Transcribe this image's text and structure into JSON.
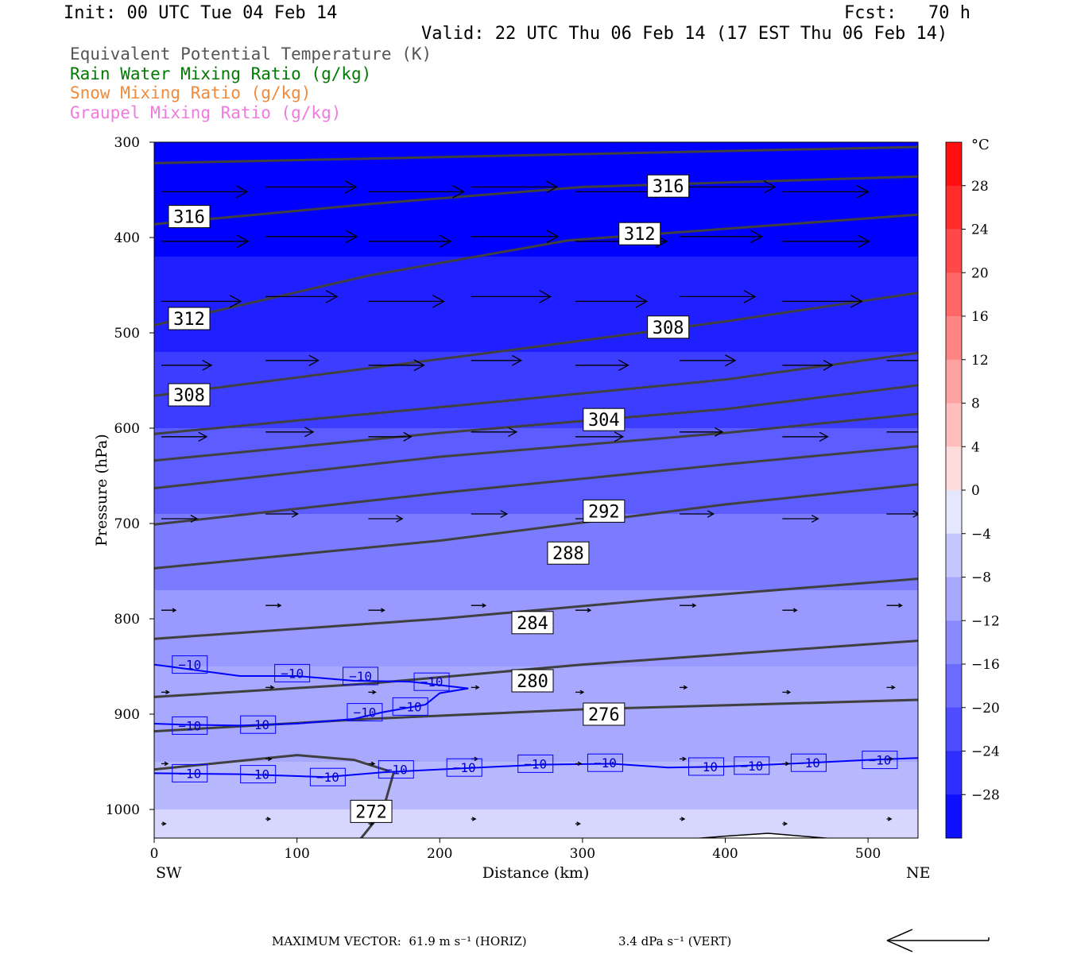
{
  "header": {
    "init": "Init: 00 UTC Tue 04 Feb 14",
    "fcst": "Fcst:   70 h",
    "valid": "Valid: 22 UTC Thu 06 Feb 14 (17 EST Thu 06 Feb 14)"
  },
  "fields": [
    {
      "label": "Equivalent Potential Temperature (K)",
      "color": "#555555"
    },
    {
      "label": "Rain Water Mixing Ratio (g/kg)",
      "color": "#007a00"
    },
    {
      "label": "Snow Mixing Ratio (g/kg)",
      "color": "#f08a3c"
    },
    {
      "label": "Graupel Mixing Ratio (g/kg)",
      "color": "#f07ae0"
    }
  ],
  "chart_data": {
    "type": "cross-section",
    "xlabel": "Distance (km)",
    "ylabel": "Pressure (hPa)",
    "xlim": [
      0,
      535
    ],
    "ylim": [
      300,
      1030
    ],
    "x_ticks": [
      0,
      100,
      200,
      300,
      400,
      500
    ],
    "y_ticks": [
      300,
      400,
      500,
      600,
      700,
      800,
      900,
      1000
    ],
    "x_end_labels": {
      "left": "SW",
      "right": "NE"
    },
    "colorbar": {
      "unit": "°C",
      "tick_labels": [
        "28",
        "24",
        "20",
        "16",
        "12",
        "8",
        "4",
        "0",
        "−4",
        "−8",
        "−12",
        "−16",
        "−20",
        "−24",
        "−28"
      ],
      "range": [
        -32,
        32
      ],
      "step": 4
    },
    "temperature_fill": {
      "note_levels": "shaded from about -32 °C aloft to about -4 °C near the surface",
      "layers": [
        {
          "p_top": 300,
          "p_bot": 420,
          "temp": -32
        },
        {
          "p_top": 420,
          "p_bot": 520,
          "temp": -28
        },
        {
          "p_top": 520,
          "p_bot": 600,
          "temp": -24
        },
        {
          "p_top": 600,
          "p_bot": 690,
          "temp": -20
        },
        {
          "p_top": 690,
          "p_bot": 770,
          "temp": -16
        },
        {
          "p_top": 770,
          "p_bot": 850,
          "temp": -12
        },
        {
          "p_top": 850,
          "p_bot": 950,
          "temp": -10
        },
        {
          "p_top": 950,
          "p_bot": 1000,
          "temp": -8
        },
        {
          "p_top": 1000,
          "p_bot": 1030,
          "temp": -4
        }
      ]
    },
    "theta_e_contours": [
      {
        "label": "",
        "points": [
          [
            0,
            322
          ],
          [
            535,
            305
          ]
        ]
      },
      {
        "label": "316",
        "label_at": [
          360,
          346
        ],
        "points": [
          [
            0,
            386
          ],
          [
            150,
            365
          ],
          [
            300,
            347
          ],
          [
            535,
            336
          ]
        ]
      },
      {
        "label": "312",
        "label_at": [
          340,
          396
        ],
        "points": [
          [
            0,
            492
          ],
          [
            150,
            440
          ],
          [
            290,
            403
          ],
          [
            535,
            376
          ]
        ]
      },
      {
        "label": "308",
        "label_at": [
          360,
          494
        ],
        "points": [
          [
            0,
            566
          ],
          [
            250,
            518
          ],
          [
            400,
            488
          ],
          [
            535,
            458
          ]
        ]
      },
      {
        "label": "304",
        "label_at": [
          315,
          591
        ],
        "points": [
          [
            0,
            606
          ],
          [
            200,
            578
          ],
          [
            400,
            549
          ],
          [
            535,
            521
          ]
        ]
      },
      {
        "label": "",
        "points": [
          [
            0,
            634
          ],
          [
            200,
            605
          ],
          [
            400,
            580
          ],
          [
            535,
            555
          ]
        ]
      },
      {
        "label": "",
        "points": [
          [
            0,
            663
          ],
          [
            200,
            630
          ],
          [
            400,
            605
          ],
          [
            535,
            585
          ]
        ]
      },
      {
        "label": "292",
        "label_at": [
          315,
          687
        ],
        "points": [
          [
            0,
            701
          ],
          [
            200,
            668
          ],
          [
            400,
            638
          ],
          [
            535,
            619
          ]
        ]
      },
      {
        "label": "288",
        "label_at": [
          290,
          731
        ],
        "points": [
          [
            0,
            747
          ],
          [
            200,
            718
          ],
          [
            400,
            680
          ],
          [
            535,
            659
          ]
        ]
      },
      {
        "label": "284",
        "label_at": [
          265,
          804
        ],
        "points": [
          [
            0,
            821
          ],
          [
            200,
            800
          ],
          [
            350,
            780
          ],
          [
            535,
            758
          ]
        ]
      },
      {
        "label": "280",
        "label_at": [
          265,
          865
        ],
        "points": [
          [
            0,
            882
          ],
          [
            150,
            868
          ],
          [
            300,
            848
          ],
          [
            535,
            823
          ]
        ]
      },
      {
        "label": "276",
        "label_at": [
          315,
          900
        ],
        "points": [
          [
            0,
            918
          ],
          [
            150,
            905
          ],
          [
            300,
            895
          ],
          [
            535,
            885
          ]
        ]
      },
      {
        "label": "",
        "points": [
          [
            0,
            958
          ],
          [
            100,
            943
          ],
          [
            140,
            948
          ],
          [
            165,
            960
          ]
        ]
      },
      {
        "label": "272",
        "label_at": [
          152,
          1002
        ],
        "points": [
          [
            135,
            1044
          ],
          [
            145,
            1030
          ],
          [
            160,
            1002
          ],
          [
            168,
            960
          ]
        ]
      }
    ],
    "isotherm_minus10": {
      "label": "−10",
      "upper": [
        [
          0,
          848
        ],
        [
          20,
          852
        ],
        [
          60,
          860
        ],
        [
          100,
          860
        ],
        [
          140,
          865
        ],
        [
          180,
          866
        ],
        [
          220,
          873
        ],
        [
          200,
          878
        ],
        [
          190,
          890
        ],
        [
          160,
          898
        ],
        [
          140,
          905
        ],
        [
          100,
          910
        ],
        [
          60,
          912
        ],
        [
          20,
          911
        ],
        [
          0,
          910
        ]
      ],
      "lower": [
        [
          0,
          962
        ],
        [
          60,
          963
        ],
        [
          120,
          966
        ],
        [
          160,
          961
        ],
        [
          200,
          958
        ],
        [
          270,
          953
        ],
        [
          320,
          952
        ],
        [
          360,
          956
        ],
        [
          400,
          955
        ],
        [
          460,
          951
        ],
        [
          500,
          948
        ],
        [
          535,
          946
        ]
      ]
    },
    "surface_outline": [
      [
        0,
        1045
      ],
      [
        150,
        1043
      ],
      [
        300,
        1040
      ],
      [
        400,
        1028
      ],
      [
        430,
        1025
      ],
      [
        470,
        1030
      ],
      [
        535,
        1040
      ]
    ],
    "wind_vectors_note": "horizontal wind arrows pointing toward NE, strongest aloft",
    "max_vector": {
      "text": "MAXIMUM VECTOR:  61.9 m s⁻¹ (HORIZ)",
      "vert": "3.4 dPa s⁻¹ (VERT)"
    }
  },
  "colors": {
    "contour": "#404040",
    "isotherm": "#0000ff",
    "arrow": "#000000"
  }
}
